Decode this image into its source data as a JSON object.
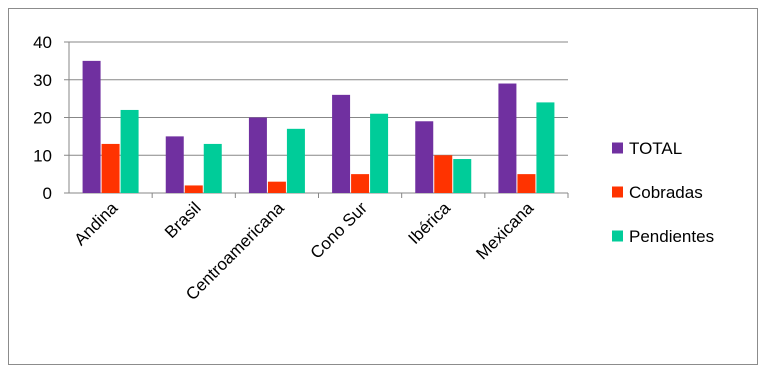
{
  "chart_data": {
    "type": "bar",
    "title": "",
    "xlabel": "",
    "ylabel": "",
    "categories": [
      "Andina",
      "Brasil",
      "Centroamericana",
      "Cono Sur",
      "Ibérica",
      "Mexicana"
    ],
    "series": [
      {
        "name": "TOTAL",
        "color": "#7030a0",
        "values": [
          35,
          15,
          20,
          26,
          19,
          29
        ]
      },
      {
        "name": "Cobradas",
        "color": "#ff3300",
        "values": [
          13,
          2,
          3,
          5,
          10,
          5
        ]
      },
      {
        "name": "Pendientes",
        "color": "#00cc99",
        "values": [
          22,
          13,
          17,
          21,
          9,
          24
        ]
      }
    ],
    "ylim": [
      0,
      40
    ],
    "yticks": [
      0,
      10,
      20,
      30,
      40
    ],
    "grid": true,
    "legend": "right"
  }
}
